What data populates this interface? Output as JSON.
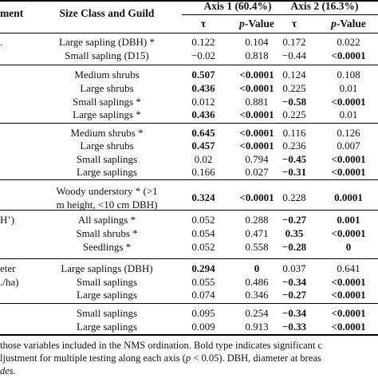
{
  "header": {
    "col_env_fragment": "ment",
    "col_size": "Size Class and Guild",
    "axis1": "Axis 1 (60.4%)",
    "axis2": "Axis 2 (16.3%)",
    "tau": "τ",
    "p_prefix": "p",
    "p_suffix": "-Value"
  },
  "rows": [
    {
      "left": ".",
      "size": "Large sapling (DBH) *",
      "t1": "0.122",
      "p1": "0.104",
      "t2": "0.172",
      "p2": "0.022",
      "bold": [
        false,
        false,
        false,
        false
      ]
    },
    {
      "left": "",
      "size": "Small sapling (D15)",
      "t1": "−0.02",
      "p1": "0.818",
      "t2": "−0.44",
      "p2": "<0.0001",
      "bold": [
        false,
        false,
        false,
        true
      ]
    },
    {
      "left": "",
      "size": "Medium shrubs",
      "t1": "0.507",
      "p1": "<0.0001",
      "t2": "0.124",
      "p2": "0.108",
      "bold": [
        true,
        true,
        false,
        false
      ]
    },
    {
      "left": "",
      "size": "Large shrubs",
      "t1": "0.436",
      "p1": "<0.0001",
      "t2": "0.225",
      "p2": "0.01",
      "bold": [
        true,
        true,
        false,
        false
      ]
    },
    {
      "left": "",
      "size": "Small saplings *",
      "t1": "0.012",
      "p1": "0.881",
      "t2": "−0.58",
      "p2": "<0.0001",
      "bold": [
        false,
        false,
        true,
        true
      ]
    },
    {
      "left": "",
      "size": "Large saplings *",
      "t1": "0.436",
      "p1": "<0.0001",
      "t2": "0.225",
      "p2": "0.01",
      "bold": [
        true,
        true,
        false,
        false
      ]
    },
    {
      "left": "",
      "size": "Medium shrubs *",
      "t1": "0.645",
      "p1": "<0.0001",
      "t2": "0.116",
      "p2": "0.126",
      "bold": [
        true,
        true,
        false,
        false
      ]
    },
    {
      "left": "",
      "size": "Large shrubs",
      "t1": "0.457",
      "p1": "<0.0001",
      "t2": "0.236",
      "p2": "0.007",
      "bold": [
        true,
        true,
        false,
        false
      ]
    },
    {
      "left": "",
      "size": "Small saplings",
      "t1": "0.02",
      "p1": "0.794",
      "t2": "−0.45",
      "p2": "<0.0001",
      "bold": [
        false,
        false,
        true,
        true
      ]
    },
    {
      "left": "",
      "size": "Large saplings",
      "t1": "0.166",
      "p1": "0.027",
      "t2": "−0.31",
      "p2": "<0.0001",
      "bold": [
        false,
        false,
        true,
        true
      ]
    },
    {
      "left": "",
      "size": "Woody understory * (>1",
      "size2": "m height, <10 cm DBH)",
      "t1": "0.324",
      "p1": "<0.0001",
      "t2": "0.228",
      "p2": "0.0001",
      "bold": [
        true,
        true,
        false,
        true
      ]
    },
    {
      "left": "H’)",
      "size": "All saplings *",
      "t1": "0.052",
      "p1": "0.288",
      "t2": "−0.27",
      "p2": "0.001",
      "bold": [
        false,
        false,
        true,
        true
      ]
    },
    {
      "left": "",
      "size": "Small shrubs *",
      "t1": "0.054",
      "p1": "0.471",
      "t2": "0.35",
      "p2": "<0.0001",
      "bold": [
        false,
        false,
        true,
        true
      ]
    },
    {
      "left": "",
      "size": "Seedlings *",
      "t1": "0.052",
      "p1": "0.558",
      "t2": "−0.28",
      "p2": "0",
      "bold": [
        false,
        false,
        true,
        true
      ]
    },
    {
      "left": "eter",
      "size": "Large saplings (DBH)",
      "t1": "0.294",
      "p1": "0",
      "t2": "0.037",
      "p2": "0.641",
      "bold": [
        true,
        true,
        false,
        false
      ]
    },
    {
      "left": "./ha)",
      "size": "Small saplings",
      "t1": "0.055",
      "p1": "0.486",
      "t2": "−0.34",
      "p2": "<0.0001",
      "bold": [
        false,
        false,
        true,
        true
      ]
    },
    {
      "left": "",
      "size": "Large saplings",
      "t1": "0.074",
      "p1": "0.346",
      "t2": "−0.27",
      "p2": "<0.0001",
      "bold": [
        false,
        false,
        true,
        true
      ]
    },
    {
      "left": "",
      "size": "Small saplings",
      "t1": "0.095",
      "p1": "0.254",
      "t2": "−0.34",
      "p2": "<0.0001",
      "bold": [
        false,
        false,
        true,
        true
      ]
    },
    {
      "left": "",
      "size": "Large saplings",
      "t1": "0.009",
      "p1": "0.913",
      "t2": "−0.33",
      "p2": "<0.0001",
      "bold": [
        false,
        false,
        true,
        true
      ]
    }
  ],
  "footnote": {
    "line1": "those variables included in the NMS ordination. Bold type indicates significant c",
    "line2_pre": "ljustment for multiple testing along each axis (",
    "line2_p": "p",
    "line2_post": " < 0.05). DBH, diameter at breas",
    "line3": "des."
  }
}
